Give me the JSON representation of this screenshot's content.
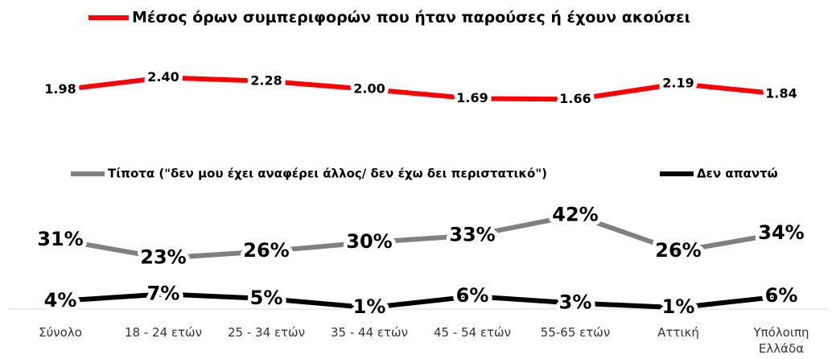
{
  "chart_data": [
    {
      "type": "line",
      "series": [
        {
          "name": "Μέσος όρων συμπεριφορών που ήταν παρούσες ή έχουν ακούσει",
          "color": "#ff0000",
          "values": [
            1.98,
            2.4,
            2.28,
            2.0,
            1.69,
            1.66,
            2.19,
            1.84
          ],
          "value_labels": [
            "1.98",
            "2.40",
            "2.28",
            "2.00",
            "1.69",
            "1.66",
            "2.19",
            "1.84"
          ]
        }
      ]
    },
    {
      "type": "line",
      "categories": [
        "Σύνολο",
        "18 - 24 ετών",
        "25 - 34 ετών",
        "35 - 44 ετών",
        "45 - 54 ετών",
        "55-65 ετών",
        "Αττική",
        "Υπόλοιπη Ελλάδα"
      ],
      "series": [
        {
          "name": "Τίποτα (\"δεν μου έχει αναφέρει άλλος/ δεν έχω δει περιστατικό\")",
          "color": "#808080",
          "values": [
            31,
            23,
            26,
            30,
            33,
            42,
            26,
            34
          ],
          "value_labels": [
            "31%",
            "23%",
            "26%",
            "30%",
            "33%",
            "42%",
            "26%",
            "34%"
          ]
        },
        {
          "name": "Δεν απαντώ",
          "color": "#000000",
          "values": [
            4,
            7,
            5,
            1,
            6,
            3,
            1,
            6
          ],
          "value_labels": [
            "4%",
            "7%",
            "5%",
            "1%",
            "6%",
            "3%",
            "1%",
            "6%"
          ]
        }
      ]
    }
  ]
}
